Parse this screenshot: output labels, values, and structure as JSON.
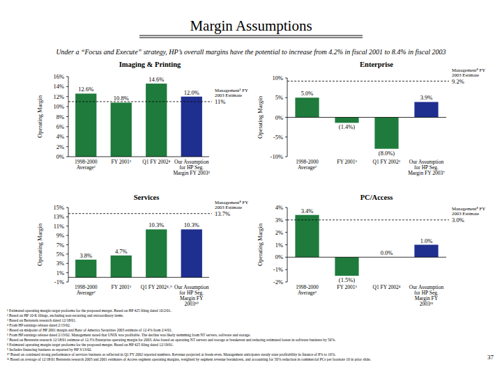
{
  "title": "Margin Assumptions",
  "subtitle": "Under a “Focus and Execute” strategy, HP’s overall margins have the potential to increase from 4.2% in fiscal 2001 to 8.4% in fiscal 2003",
  "chart_data": [
    {
      "type": "bar",
      "title": "Imaging & Printing",
      "y_label": "Operating Margin",
      "categories": [
        "1998-2000 Average²",
        "FY 2001³",
        "Q1 FY 2002⁴",
        "Our Assumption for HP Seg. Margin FY 2003⁵"
      ],
      "values": [
        12.6,
        10.8,
        14.6,
        12.0
      ],
      "value_labels": [
        "12.6%",
        "10.8%",
        "14.6%",
        "12.0%"
      ],
      "data_labels": true,
      "colors": [
        "#1e7b3c",
        "#1e7b3c",
        "#1e7b3c",
        "#1f2f8f"
      ],
      "ylim": [
        0,
        16
      ],
      "yticks": [
        {
          "value": 0,
          "label": "0%"
        },
        {
          "value": 2,
          "label": "2%"
        },
        {
          "value": 4,
          "label": "4%"
        },
        {
          "value": 6,
          "label": "6%"
        },
        {
          "value": 8,
          "label": "8%"
        },
        {
          "value": 10,
          "label": "10%"
        },
        {
          "value": 12,
          "label": "12%"
        },
        {
          "value": 14,
          "label": "14%"
        },
        {
          "value": 16,
          "label": "16%"
        }
      ],
      "grid": false,
      "reference_line": {
        "label": "Management¹ FY 2003 Estimate",
        "value": 11,
        "value_label": "11%"
      }
    },
    {
      "type": "bar",
      "title": "Enterprise",
      "y_label": "Operating Margin",
      "categories": [
        "1998-2000 Average²",
        "FY 2001³",
        "Q1 FY 2002⁶",
        "Our Assumption for HP Seg. Margin FY 2003⁷"
      ],
      "values": [
        5.0,
        -1.4,
        -8.0,
        3.9
      ],
      "value_labels": [
        "5.0%",
        "(1.4%)",
        "(8.0%)",
        "3.9%"
      ],
      "data_labels": true,
      "colors": [
        "#1e7b3c",
        "#1e7b3c",
        "#1e7b3c",
        "#1f2f8f"
      ],
      "ylim": [
        -10,
        10
      ],
      "yticks": [
        {
          "value": -10,
          "label": "-10%"
        },
        {
          "value": -5,
          "label": "-5%"
        },
        {
          "value": 0,
          "label": "0%"
        },
        {
          "value": 5,
          "label": "5%"
        },
        {
          "value": 10,
          "label": "10%"
        }
      ],
      "grid": false,
      "reference_line": {
        "label": "Management⁸ FY 2003 Estimate",
        "value": 9.2,
        "value_label": "9.2%"
      }
    },
    {
      "type": "bar",
      "title": "Services",
      "y_label": "Operating Margin",
      "categories": [
        "1998-2000 Average²",
        "FY 2001³",
        "Q1 FY 2002⁴˒⁹",
        "Our Assumption for HP Seg. Margin FY 2003¹⁰"
      ],
      "values": [
        3.8,
        4.7,
        10.3,
        10.3
      ],
      "value_labels": [
        "3.8%",
        "4.7%",
        "10.3%",
        "10.3%"
      ],
      "data_labels": true,
      "colors": [
        "#1e7b3c",
        "#1e7b3c",
        "#1e7b3c",
        "#1f2f8f"
      ],
      "ylim": [
        -1,
        15
      ],
      "yticks": [
        {
          "value": -1,
          "label": "-1%"
        },
        {
          "value": 1,
          "label": "1%"
        },
        {
          "value": 3,
          "label": "3%"
        },
        {
          "value": 5,
          "label": "5%"
        },
        {
          "value": 7,
          "label": "7%"
        },
        {
          "value": 9,
          "label": "9%"
        },
        {
          "value": 11,
          "label": "11%"
        },
        {
          "value": 13,
          "label": "13%"
        },
        {
          "value": 15,
          "label": "15%"
        }
      ],
      "grid": false,
      "reference_line": {
        "label": "Management⁸ FY 2003 Estimate",
        "value": 13.7,
        "value_label": "13.7%"
      }
    },
    {
      "type": "bar",
      "title": "PC/Access",
      "y_label": "Operating Margin",
      "categories": [
        "1998-2000 Average²",
        "FY 2001³",
        "Q1 FY 2002⁴",
        "Our Assumption for HP Seg. Margin FY 2003¹¹"
      ],
      "values": [
        3.4,
        -1.5,
        0.0,
        1.0
      ],
      "value_labels": [
        "3.4%",
        "(1.5%)",
        "0.0%",
        "1.0%"
      ],
      "data_labels": true,
      "colors": [
        "#1e7b3c",
        "#1e7b3c",
        "#1e7b3c",
        "#1f2f8f"
      ],
      "ylim": [
        -2,
        4
      ],
      "yticks": [
        {
          "value": -2,
          "label": "-2%"
        },
        {
          "value": -1,
          "label": "-1%"
        },
        {
          "value": 0,
          "label": "0%"
        },
        {
          "value": 1,
          "label": "1%"
        },
        {
          "value": 2,
          "label": "2%"
        },
        {
          "value": 3,
          "label": "3%"
        },
        {
          "value": 4,
          "label": "4%"
        }
      ],
      "grid": false,
      "reference_line": {
        "label": "Management⁸ FY 2003 Estimate",
        "value": 3.0,
        "value_label": "3.0%"
      }
    }
  ],
  "footnotes": [
    "¹ Estimated operating margin target proforma for the proposed merger. Based on HP 425 filing dated 10/2/01.",
    "² Based on HP 10-K filings, excluding non-recurring and extraordinary items.",
    "³ Based on Bernstein research dated 12/18/01.",
    "⁴ From HP earnings release dated 2/13/02.",
    "⁵ Based on midpoint of HP 2001 margin and Banc of America Securities 2003 estimate of 12.4% from 2/4/01.",
    "⁶ From HP earnings release dated 2/13/02. Management noted that UNIX was profitable. The decline was likely stemming from NT servers, software and storage.",
    "⁷ Based on Bernstein research 12/18/01 estimate of 12.3% Enterprise operating margin for 2003. Also based on operating NT servers and storage at breakeven and reducing estimated losses in software business by 50%.",
    "⁸ Estimated operating margin target proforma for the proposed merger. Based on HP 425 filing dated 12/19/01.",
    "⁹ Includes financing business as reported by HP 3/13/02.",
    "¹⁰ Based on continued strong performance of services business as reflected in Q1 FY 2002 reported numbers. Revenue projected at break-even. Management anticipates steady state profitability in finance of 8% to 10%.",
    "¹¹ Based on average of 12/18/01 Bernstein research 2003 and 2001 estimates of Access segment operating margins, weighted by segment revenue breakdown, and accounting for 50% reduction in commercial PCs per footnote 10 in prior slide."
  ],
  "page_number": "37"
}
